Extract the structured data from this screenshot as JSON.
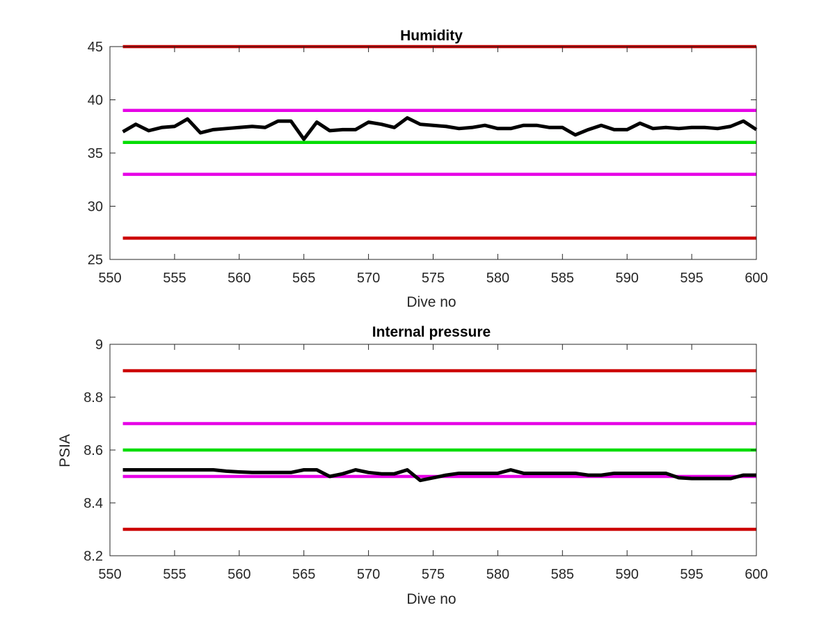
{
  "chart_data": [
    {
      "type": "line",
      "title": "Humidity",
      "xlabel": "Dive no",
      "ylabel": "",
      "xlim": [
        550,
        600
      ],
      "ylim": [
        25,
        45
      ],
      "xticks": [
        550,
        555,
        560,
        565,
        570,
        575,
        580,
        585,
        590,
        595,
        600
      ],
      "yticks": [
        25,
        30,
        35,
        40,
        45
      ],
      "xtick_labels": [
        "550",
        "555",
        "560",
        "565",
        "570",
        "575",
        "580",
        "585",
        "590",
        "595",
        "600"
      ],
      "ytick_labels": [
        "25",
        "30",
        "35",
        "40",
        "45"
      ],
      "grid": false,
      "series": [
        {
          "color": "#000000",
          "x": [
            551,
            552,
            553,
            554,
            555,
            556,
            557,
            558,
            559,
            560,
            561,
            562,
            563,
            564,
            565,
            566,
            567,
            568,
            569,
            570,
            571,
            572,
            573,
            574,
            575,
            576,
            577,
            578,
            579,
            580,
            581,
            582,
            583,
            584,
            585,
            586,
            587,
            588,
            589,
            590,
            591,
            592,
            593,
            594,
            595,
            596,
            597,
            598,
            599,
            600
          ],
          "values": [
            37.0,
            37.7,
            37.1,
            37.4,
            37.5,
            38.2,
            36.9,
            37.2,
            37.3,
            37.4,
            37.5,
            37.4,
            38.0,
            38.0,
            36.3,
            37.9,
            37.1,
            37.2,
            37.2,
            37.9,
            37.7,
            37.4,
            38.3,
            37.7,
            37.6,
            37.5,
            37.3,
            37.4,
            37.6,
            37.3,
            37.3,
            37.6,
            37.6,
            37.4,
            37.4,
            36.7,
            37.2,
            37.6,
            37.2,
            37.2,
            37.8,
            37.3,
            37.4,
            37.3,
            37.4,
            37.4,
            37.3,
            37.5,
            38.0,
            37.2
          ]
        },
        {
          "color": "#cc0000",
          "x": [
            551,
            600
          ],
          "values": [
            45,
            45
          ]
        },
        {
          "color": "#cc0000",
          "x": [
            551,
            600
          ],
          "values": [
            27,
            27
          ]
        },
        {
          "color": "#e600e6",
          "x": [
            551,
            600
          ],
          "values": [
            39,
            39
          ]
        },
        {
          "color": "#e600e6",
          "x": [
            551,
            600
          ],
          "values": [
            33,
            33
          ]
        },
        {
          "color": "#00dd00",
          "x": [
            551,
            600
          ],
          "values": [
            36,
            36
          ]
        }
      ]
    },
    {
      "type": "line",
      "title": "Internal pressure",
      "xlabel": "Dive no",
      "ylabel": "PSIA",
      "xlim": [
        550,
        600
      ],
      "ylim": [
        8.2,
        9.0
      ],
      "xticks": [
        550,
        555,
        560,
        565,
        570,
        575,
        580,
        585,
        590,
        595,
        600
      ],
      "yticks": [
        8.2,
        8.4,
        8.6,
        8.8,
        9.0
      ],
      "xtick_labels": [
        "550",
        "555",
        "560",
        "565",
        "570",
        "575",
        "580",
        "585",
        "590",
        "595",
        "600"
      ],
      "ytick_labels": [
        "8.2",
        "8.4",
        "8.6",
        "8.8",
        "9"
      ],
      "grid": false,
      "series": [
        {
          "color": "#000000",
          "x": [
            551,
            552,
            553,
            554,
            555,
            556,
            557,
            558,
            559,
            560,
            561,
            562,
            563,
            564,
            565,
            566,
            567,
            568,
            569,
            570,
            571,
            572,
            573,
            574,
            575,
            576,
            577,
            578,
            579,
            580,
            581,
            582,
            583,
            584,
            585,
            586,
            587,
            588,
            589,
            590,
            591,
            592,
            593,
            594,
            595,
            596,
            597,
            598,
            599,
            600
          ],
          "values": [
            8.525,
            8.525,
            8.525,
            8.525,
            8.525,
            8.525,
            8.525,
            8.525,
            8.52,
            8.517,
            8.515,
            8.515,
            8.515,
            8.515,
            8.525,
            8.525,
            8.5,
            8.51,
            8.525,
            8.515,
            8.51,
            8.51,
            8.525,
            8.485,
            8.495,
            8.505,
            8.512,
            8.512,
            8.512,
            8.512,
            8.525,
            8.512,
            8.512,
            8.512,
            8.512,
            8.512,
            8.505,
            8.505,
            8.512,
            8.512,
            8.512,
            8.512,
            8.512,
            8.495,
            8.492,
            8.492,
            8.492,
            8.492,
            8.505,
            8.505
          ]
        },
        {
          "color": "#cc0000",
          "x": [
            551,
            600
          ],
          "values": [
            8.9,
            8.9
          ]
        },
        {
          "color": "#cc0000",
          "x": [
            551,
            600
          ],
          "values": [
            8.3,
            8.3
          ]
        },
        {
          "color": "#e600e6",
          "x": [
            551,
            600
          ],
          "values": [
            8.7,
            8.7
          ]
        },
        {
          "color": "#e600e6",
          "x": [
            551,
            600
          ],
          "values": [
            8.5,
            8.5
          ]
        },
        {
          "color": "#00dd00",
          "x": [
            551,
            600
          ],
          "values": [
            8.6,
            8.6
          ]
        }
      ]
    }
  ]
}
